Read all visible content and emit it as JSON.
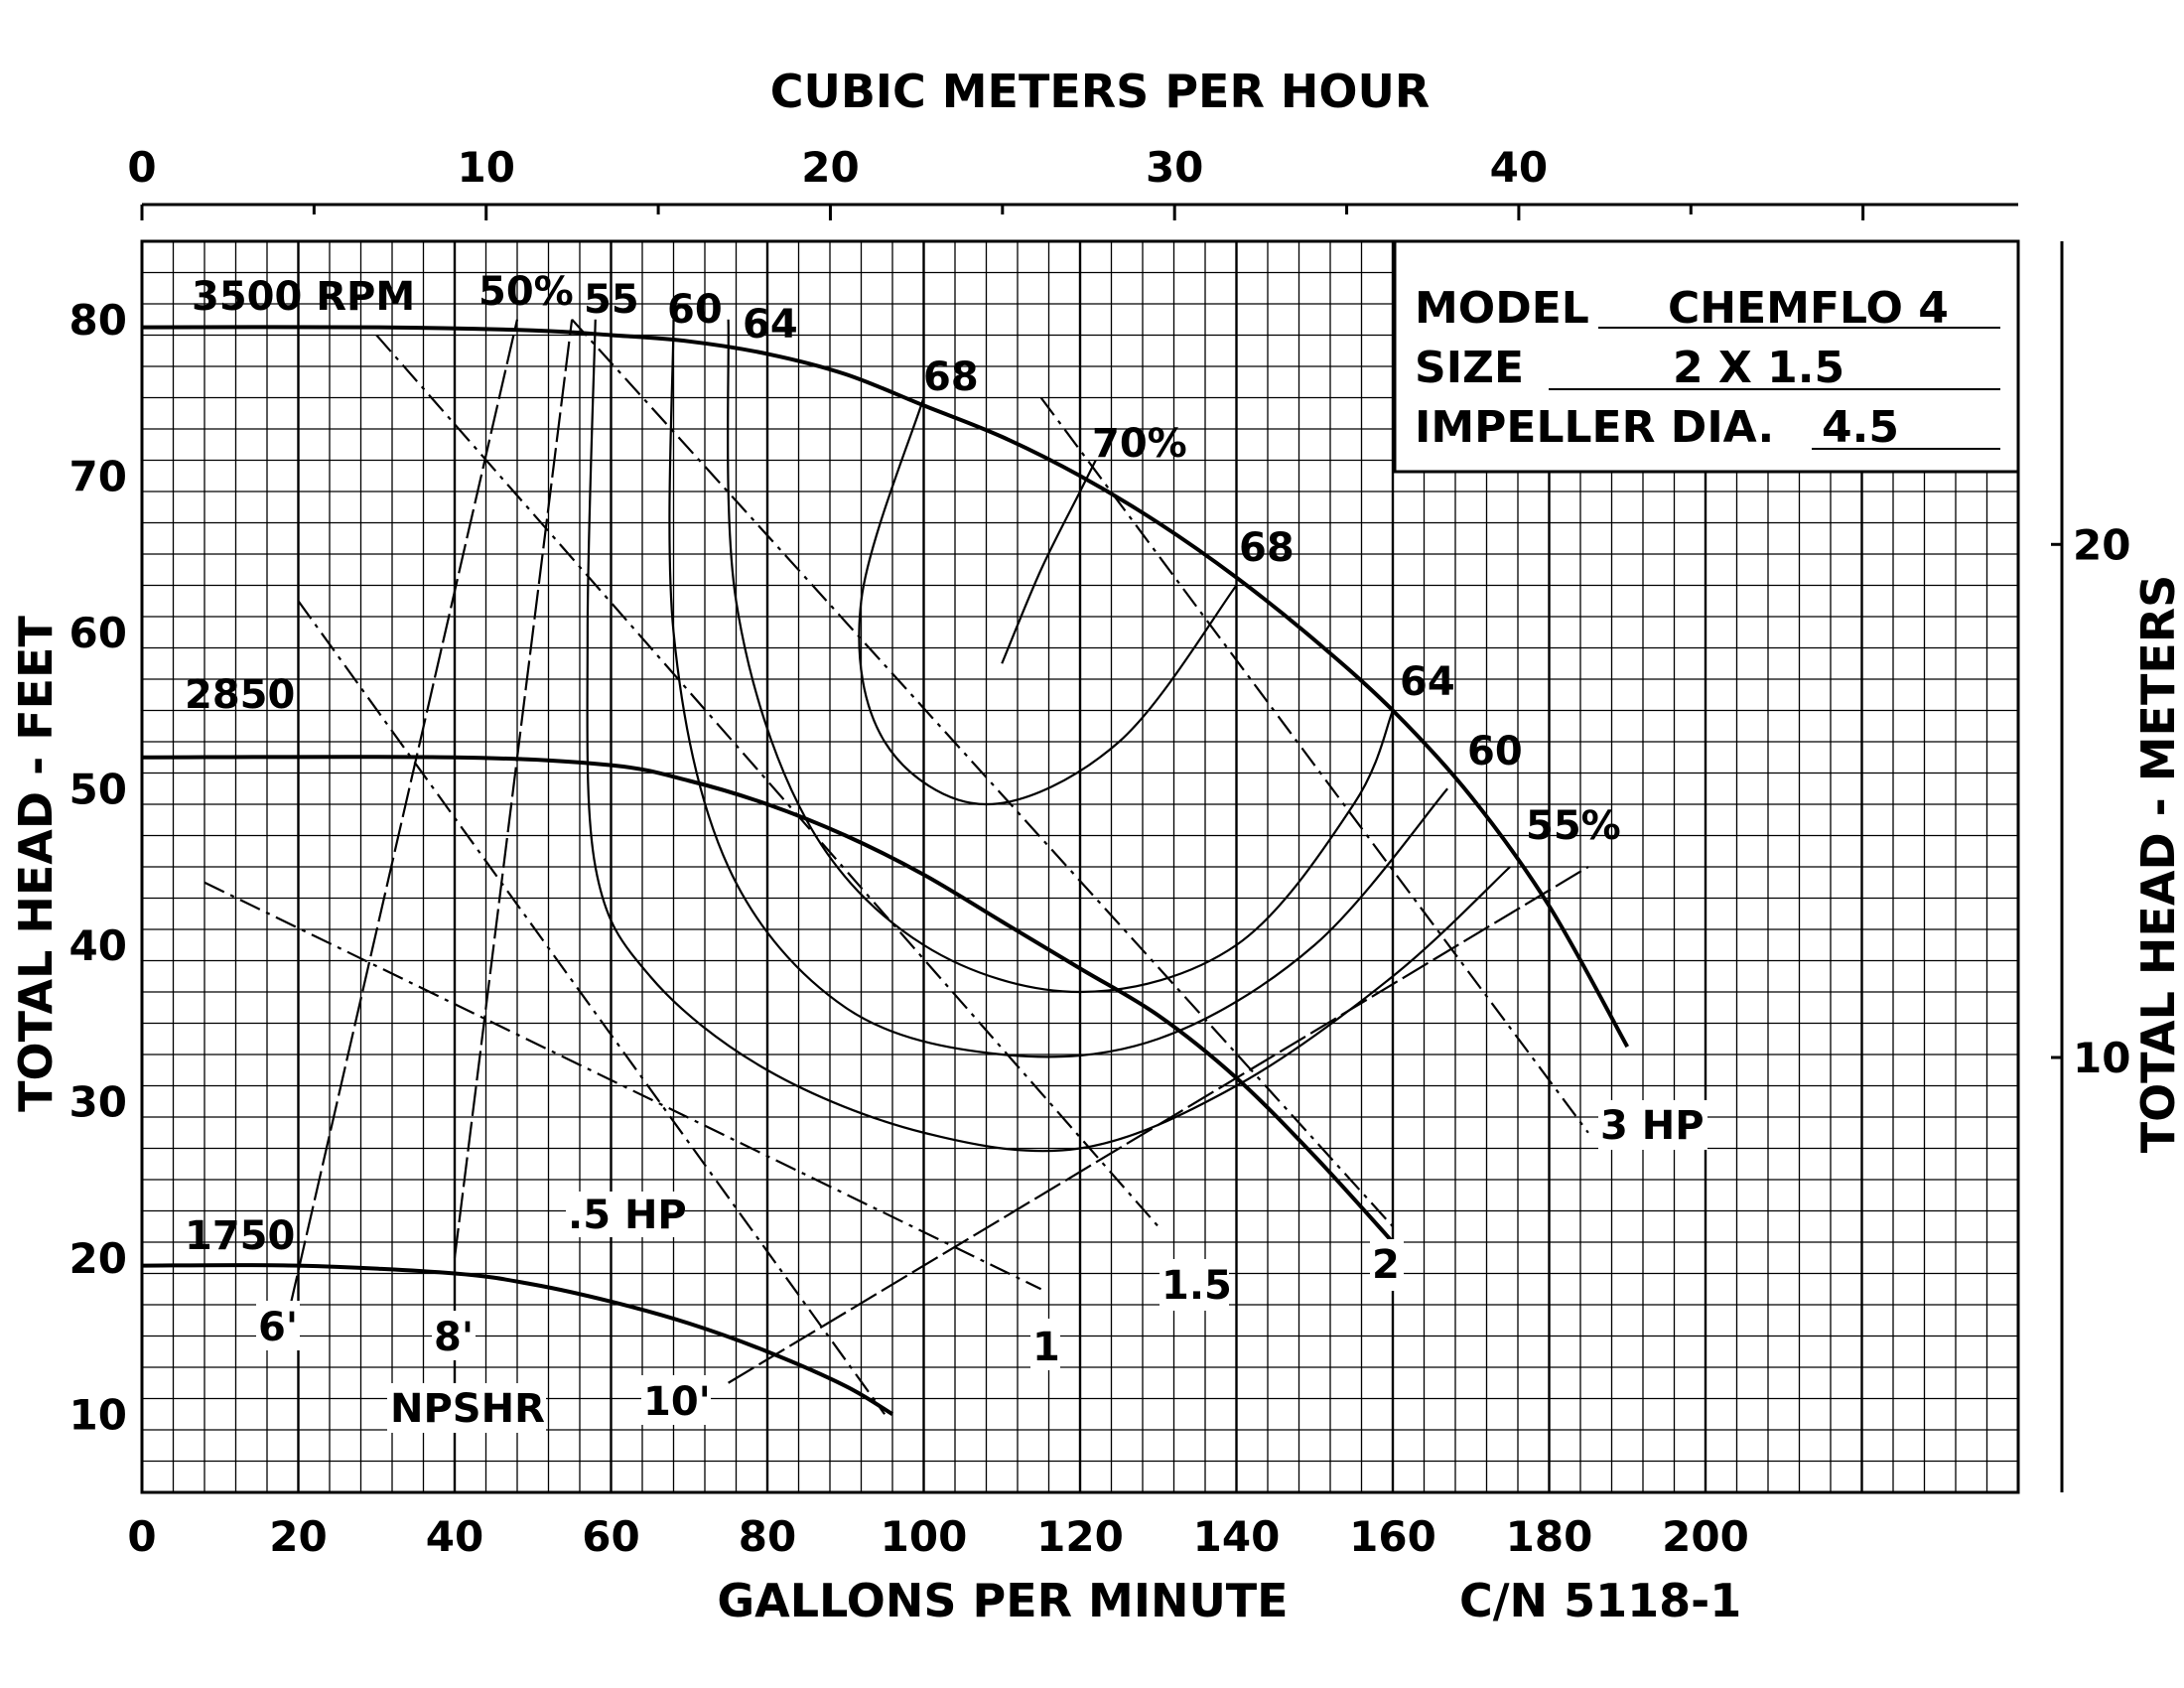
{
  "chart_data": {
    "type": "line",
    "title": "",
    "xlabel": "GALLONS PER MINUTE",
    "ylabel": "TOTAL HEAD - FEET",
    "x2label": "CUBIC METERS PER HOUR",
    "y2label": "TOTAL HEAD - METERS",
    "catalog_number": "C/N 5118-1",
    "xlim": [
      0,
      240
    ],
    "ylim": [
      5,
      85
    ],
    "x_ticks": [
      0,
      20,
      40,
      60,
      80,
      100,
      120,
      140,
      160,
      180,
      200
    ],
    "y_ticks": [
      10,
      20,
      30,
      40,
      50,
      60,
      70,
      80
    ],
    "x2_ticks": [
      0,
      10,
      20,
      30,
      40
    ],
    "y2_ticks": [
      10,
      20
    ],
    "grid": true,
    "info_box": {
      "model_label": "MODEL",
      "model_value": "CHEMFLO 4",
      "size_label": "SIZE",
      "size_value": "2 X 1.5",
      "impeller_label": "IMPELLER DIA.",
      "impeller_value": "4.5"
    },
    "head_curves": [
      {
        "name": "3500 RPM",
        "x": [
          0,
          30,
          50,
          60,
          70,
          80,
          90,
          100,
          110,
          120,
          130,
          140,
          150,
          160,
          170,
          180,
          190
        ],
        "y": [
          79.5,
          79.5,
          79.3,
          79.0,
          78.6,
          77.8,
          76.5,
          74.5,
          72.5,
          70.0,
          67.0,
          63.5,
          59.5,
          55.0,
          49.5,
          42.5,
          33.5
        ]
      },
      {
        "name": "2850",
        "x": [
          0,
          40,
          60,
          70,
          80,
          90,
          100,
          110,
          120,
          130,
          140,
          150,
          160
        ],
        "y": [
          52.0,
          52.0,
          51.5,
          50.5,
          49.0,
          47.0,
          44.5,
          41.5,
          38.5,
          35.5,
          31.5,
          26.5,
          21.0
        ]
      },
      {
        "name": "1750",
        "x": [
          0,
          20,
          40,
          50,
          60,
          70,
          80,
          90,
          96
        ],
        "y": [
          19.5,
          19.5,
          19.0,
          18.3,
          17.2,
          15.8,
          14.0,
          11.8,
          10.0
        ]
      }
    ],
    "efficiency_labels": [
      "50%",
      "55",
      "60",
      "64",
      "68",
      "70%",
      "68",
      "64",
      "60",
      "55%"
    ],
    "efficiency_curves": [
      {
        "name": "55%",
        "x": [
          58,
          57,
          58,
          65,
          80,
          100,
          120,
          140,
          160,
          175
        ],
        "y": [
          80,
          60,
          45,
          38,
          32,
          28,
          27,
          31,
          38,
          45
        ]
      },
      {
        "name": "60",
        "x": [
          68,
          68,
          75,
          90,
          110,
          130,
          150,
          167
        ],
        "y": [
          80,
          60,
          45,
          36,
          33,
          34,
          40,
          50
        ]
      },
      {
        "name": "64",
        "x": [
          75,
          76,
          85,
          100,
          120,
          140,
          155,
          160
        ],
        "y": [
          80,
          62,
          48,
          40,
          37,
          40,
          49,
          55
        ]
      },
      {
        "name": "68",
        "x": [
          100,
          92,
          95,
          108,
          125,
          140
        ],
        "y": [
          75,
          62,
          53,
          49,
          53,
          63
        ]
      },
      {
        "name": "70%",
        "x": [
          110,
          115,
          120,
          122
        ],
        "y": [
          58,
          64,
          69,
          71
        ]
      }
    ],
    "horsepower_lines": [
      {
        "label": ".5 HP",
        "x": [
          20,
          95
        ],
        "y": [
          62,
          10
        ]
      },
      {
        "label": "1",
        "x": [
          8,
          115
        ],
        "y": [
          44,
          18
        ]
      },
      {
        "label": "1.5",
        "x": [
          30,
          130
        ],
        "y": [
          79,
          22
        ]
      },
      {
        "label": "2",
        "x": [
          55,
          160
        ],
        "y": [
          80,
          22
        ]
      },
      {
        "label": "3 HP",
        "x": [
          115,
          185
        ],
        "y": [
          75,
          28
        ]
      }
    ],
    "npshr_label": "NPSHR",
    "npshr_lines": [
      {
        "label": "6'",
        "x": [
          19,
          48
        ],
        "y": [
          17,
          80
        ]
      },
      {
        "label": "8'",
        "x": [
          40,
          55
        ],
        "y": [
          20,
          80
        ]
      },
      {
        "label": "10'",
        "x": [
          75,
          185
        ],
        "y": [
          12,
          45
        ]
      }
    ]
  }
}
